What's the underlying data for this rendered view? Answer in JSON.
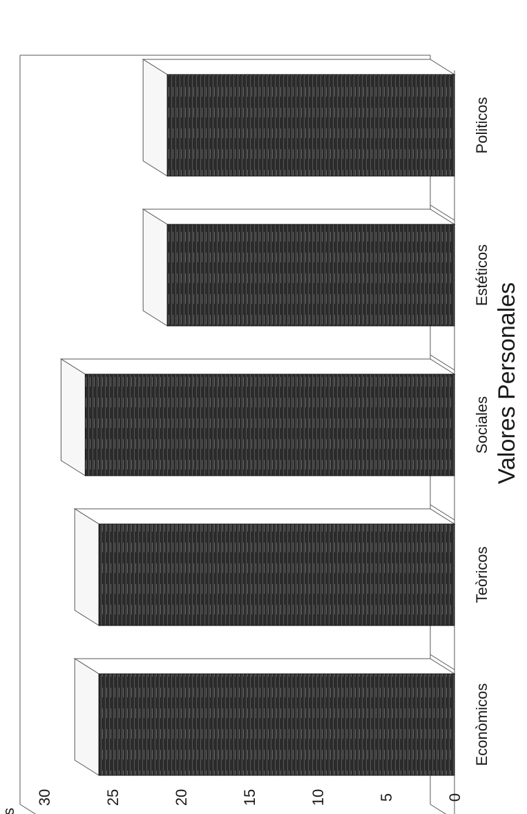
{
  "chart_data": {
    "type": "bar",
    "categories": [
      "Politicos",
      "Estéticos",
      "Sociales",
      "Teòricos",
      "Econòmicos"
    ],
    "values": [
      21,
      21,
      27,
      26,
      26
    ],
    "ylim": [
      0,
      30
    ],
    "yticks": [
      0,
      5,
      10,
      15,
      20,
      25,
      30
    ],
    "ylabel": "puntos",
    "xlabel": "Valores Personales",
    "title": "",
    "grid": false,
    "orientation": "rotated-90",
    "style": "3d",
    "bar_color": "#2b2b2b"
  }
}
